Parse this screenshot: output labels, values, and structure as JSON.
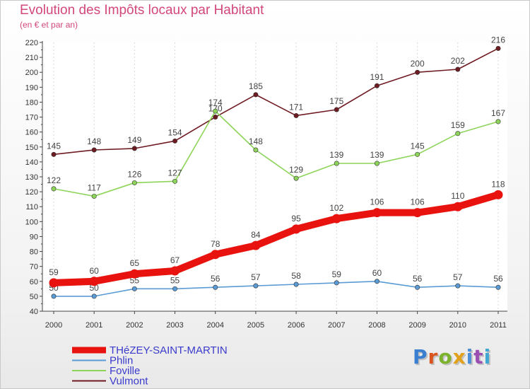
{
  "title": "Evolution des Impôts locaux par Habitant",
  "subtitle": "(en € et par an)",
  "logo": {
    "text": "Proxiti",
    "letter_colors": [
      "#3a7fd0",
      "#d9541e",
      "#7cb22e",
      "#e1a11b",
      "#4b8fd8",
      "#9c4fb3",
      "#3ea8d2"
    ]
  },
  "colors": {
    "background": "#ffffff",
    "grid": "#d8d8d8",
    "text": "#d2477c"
  },
  "chart_data": {
    "type": "line",
    "title": "Evolution des Impôts locaux par Habitant",
    "subtitle": "(en € et par an)",
    "x": [
      "2000",
      "2001",
      "2002",
      "2003",
      "2004",
      "2005",
      "2006",
      "2007",
      "2008",
      "2009",
      "2010",
      "2011"
    ],
    "ylim": [
      40,
      220
    ],
    "yticks": [
      40,
      50,
      60,
      70,
      80,
      90,
      100,
      110,
      120,
      130,
      140,
      150,
      160,
      170,
      180,
      190,
      200,
      210,
      220
    ],
    "grid": "vertical dashed",
    "legend_position": "bottom-left",
    "series": [
      {
        "name": "Vulmont",
        "color": "#6e1b22",
        "values": [
          145,
          148,
          149,
          154,
          170,
          185,
          171,
          175,
          191,
          200,
          202,
          216
        ],
        "emphasis": false
      },
      {
        "name": "Foville",
        "color": "#8ed45a",
        "values": [
          122,
          117,
          126,
          127,
          174,
          148,
          129,
          139,
          139,
          145,
          159,
          167
        ],
        "emphasis": false
      },
      {
        "name": "Phlin",
        "color": "#5b9bd5",
        "values": [
          50,
          50,
          55,
          55,
          56,
          57,
          58,
          59,
          60,
          56,
          57,
          56
        ],
        "emphasis": false
      },
      {
        "name": "THéZEY-SAINT-MARTIN",
        "color": "#e8130f",
        "values": [
          59,
          60,
          65,
          67,
          78,
          84,
          95,
          102,
          106,
          106,
          110,
          118
        ],
        "emphasis": true
      }
    ],
    "legend_order": [
      "THéZEY-SAINT-MARTIN",
      "Phlin",
      "Foville",
      "Vulmont"
    ]
  }
}
